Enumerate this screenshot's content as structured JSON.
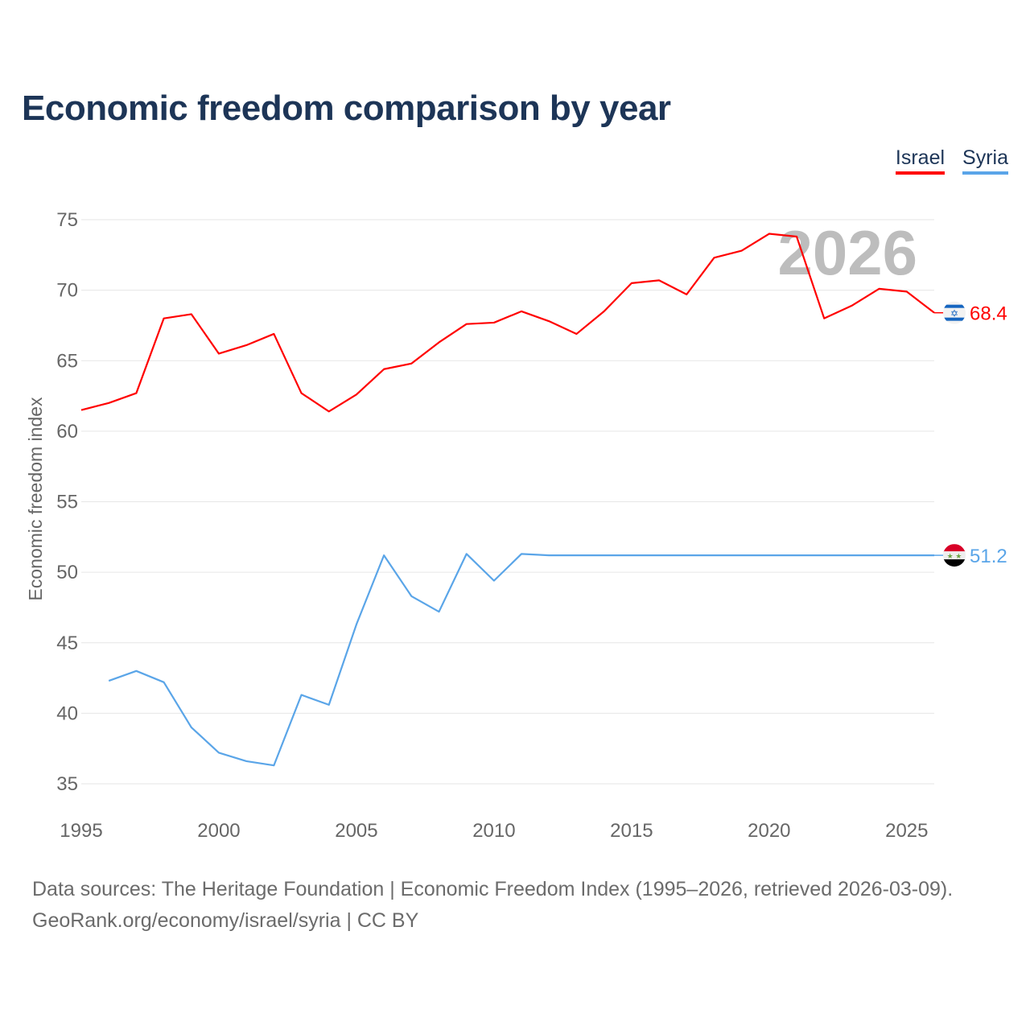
{
  "chart_data": {
    "type": "line",
    "title": "Economic freedom comparison by year",
    "xlabel": "",
    "ylabel": "Economic freedom index",
    "xlim": [
      1995,
      2026
    ],
    "ylim": [
      35,
      75
    ],
    "yticks": [
      35,
      40,
      45,
      50,
      55,
      60,
      65,
      70,
      75
    ],
    "xticks": [
      1995,
      2000,
      2005,
      2010,
      2015,
      2020,
      2025
    ],
    "grid": true,
    "legend_position": "top-right",
    "year_watermark": "2026",
    "series": [
      {
        "name": "Israel",
        "color": "#ff0000",
        "flag": "israel-flag",
        "end_label": "68.4",
        "x": [
          1995,
          1996,
          1997,
          1998,
          1999,
          2000,
          2001,
          2002,
          2003,
          2004,
          2005,
          2006,
          2007,
          2008,
          2009,
          2010,
          2011,
          2012,
          2013,
          2014,
          2015,
          2016,
          2017,
          2018,
          2019,
          2020,
          2021,
          2022,
          2023,
          2024,
          2025,
          2026
        ],
        "y": [
          61.5,
          62.0,
          62.7,
          68.0,
          68.3,
          65.5,
          66.1,
          66.9,
          62.7,
          61.4,
          62.6,
          64.4,
          64.8,
          66.3,
          67.6,
          67.7,
          68.5,
          67.8,
          66.9,
          68.5,
          70.5,
          70.7,
          69.7,
          72.3,
          72.8,
          74.0,
          73.8,
          68.0,
          68.9,
          70.1,
          69.9,
          68.4
        ]
      },
      {
        "name": "Syria",
        "color": "#5aa5e8",
        "flag": "syria-flag",
        "end_label": "51.2",
        "x": [
          1996,
          1997,
          1998,
          1999,
          2000,
          2001,
          2002,
          2003,
          2004,
          2005,
          2006,
          2007,
          2008,
          2009,
          2010,
          2011,
          2012,
          2013,
          2014,
          2015,
          2016,
          2017,
          2018,
          2019,
          2020,
          2021,
          2022,
          2023,
          2024,
          2025,
          2026
        ],
        "y": [
          42.3,
          43.0,
          42.2,
          39.0,
          37.2,
          36.6,
          36.3,
          41.3,
          40.6,
          46.3,
          51.2,
          48.3,
          47.2,
          51.3,
          49.4,
          51.3,
          51.2,
          51.2,
          51.2,
          51.2,
          51.2,
          51.2,
          51.2,
          51.2,
          51.2,
          51.2,
          51.2,
          51.2,
          51.2,
          51.2,
          51.2
        ]
      }
    ]
  },
  "footer": {
    "line1": "Data sources: The Heritage Foundation | Economic Freedom Index (1995–2026, retrieved 2026-03-09).",
    "line2": "GeoRank.org/economy/israel/syria | CC BY"
  }
}
